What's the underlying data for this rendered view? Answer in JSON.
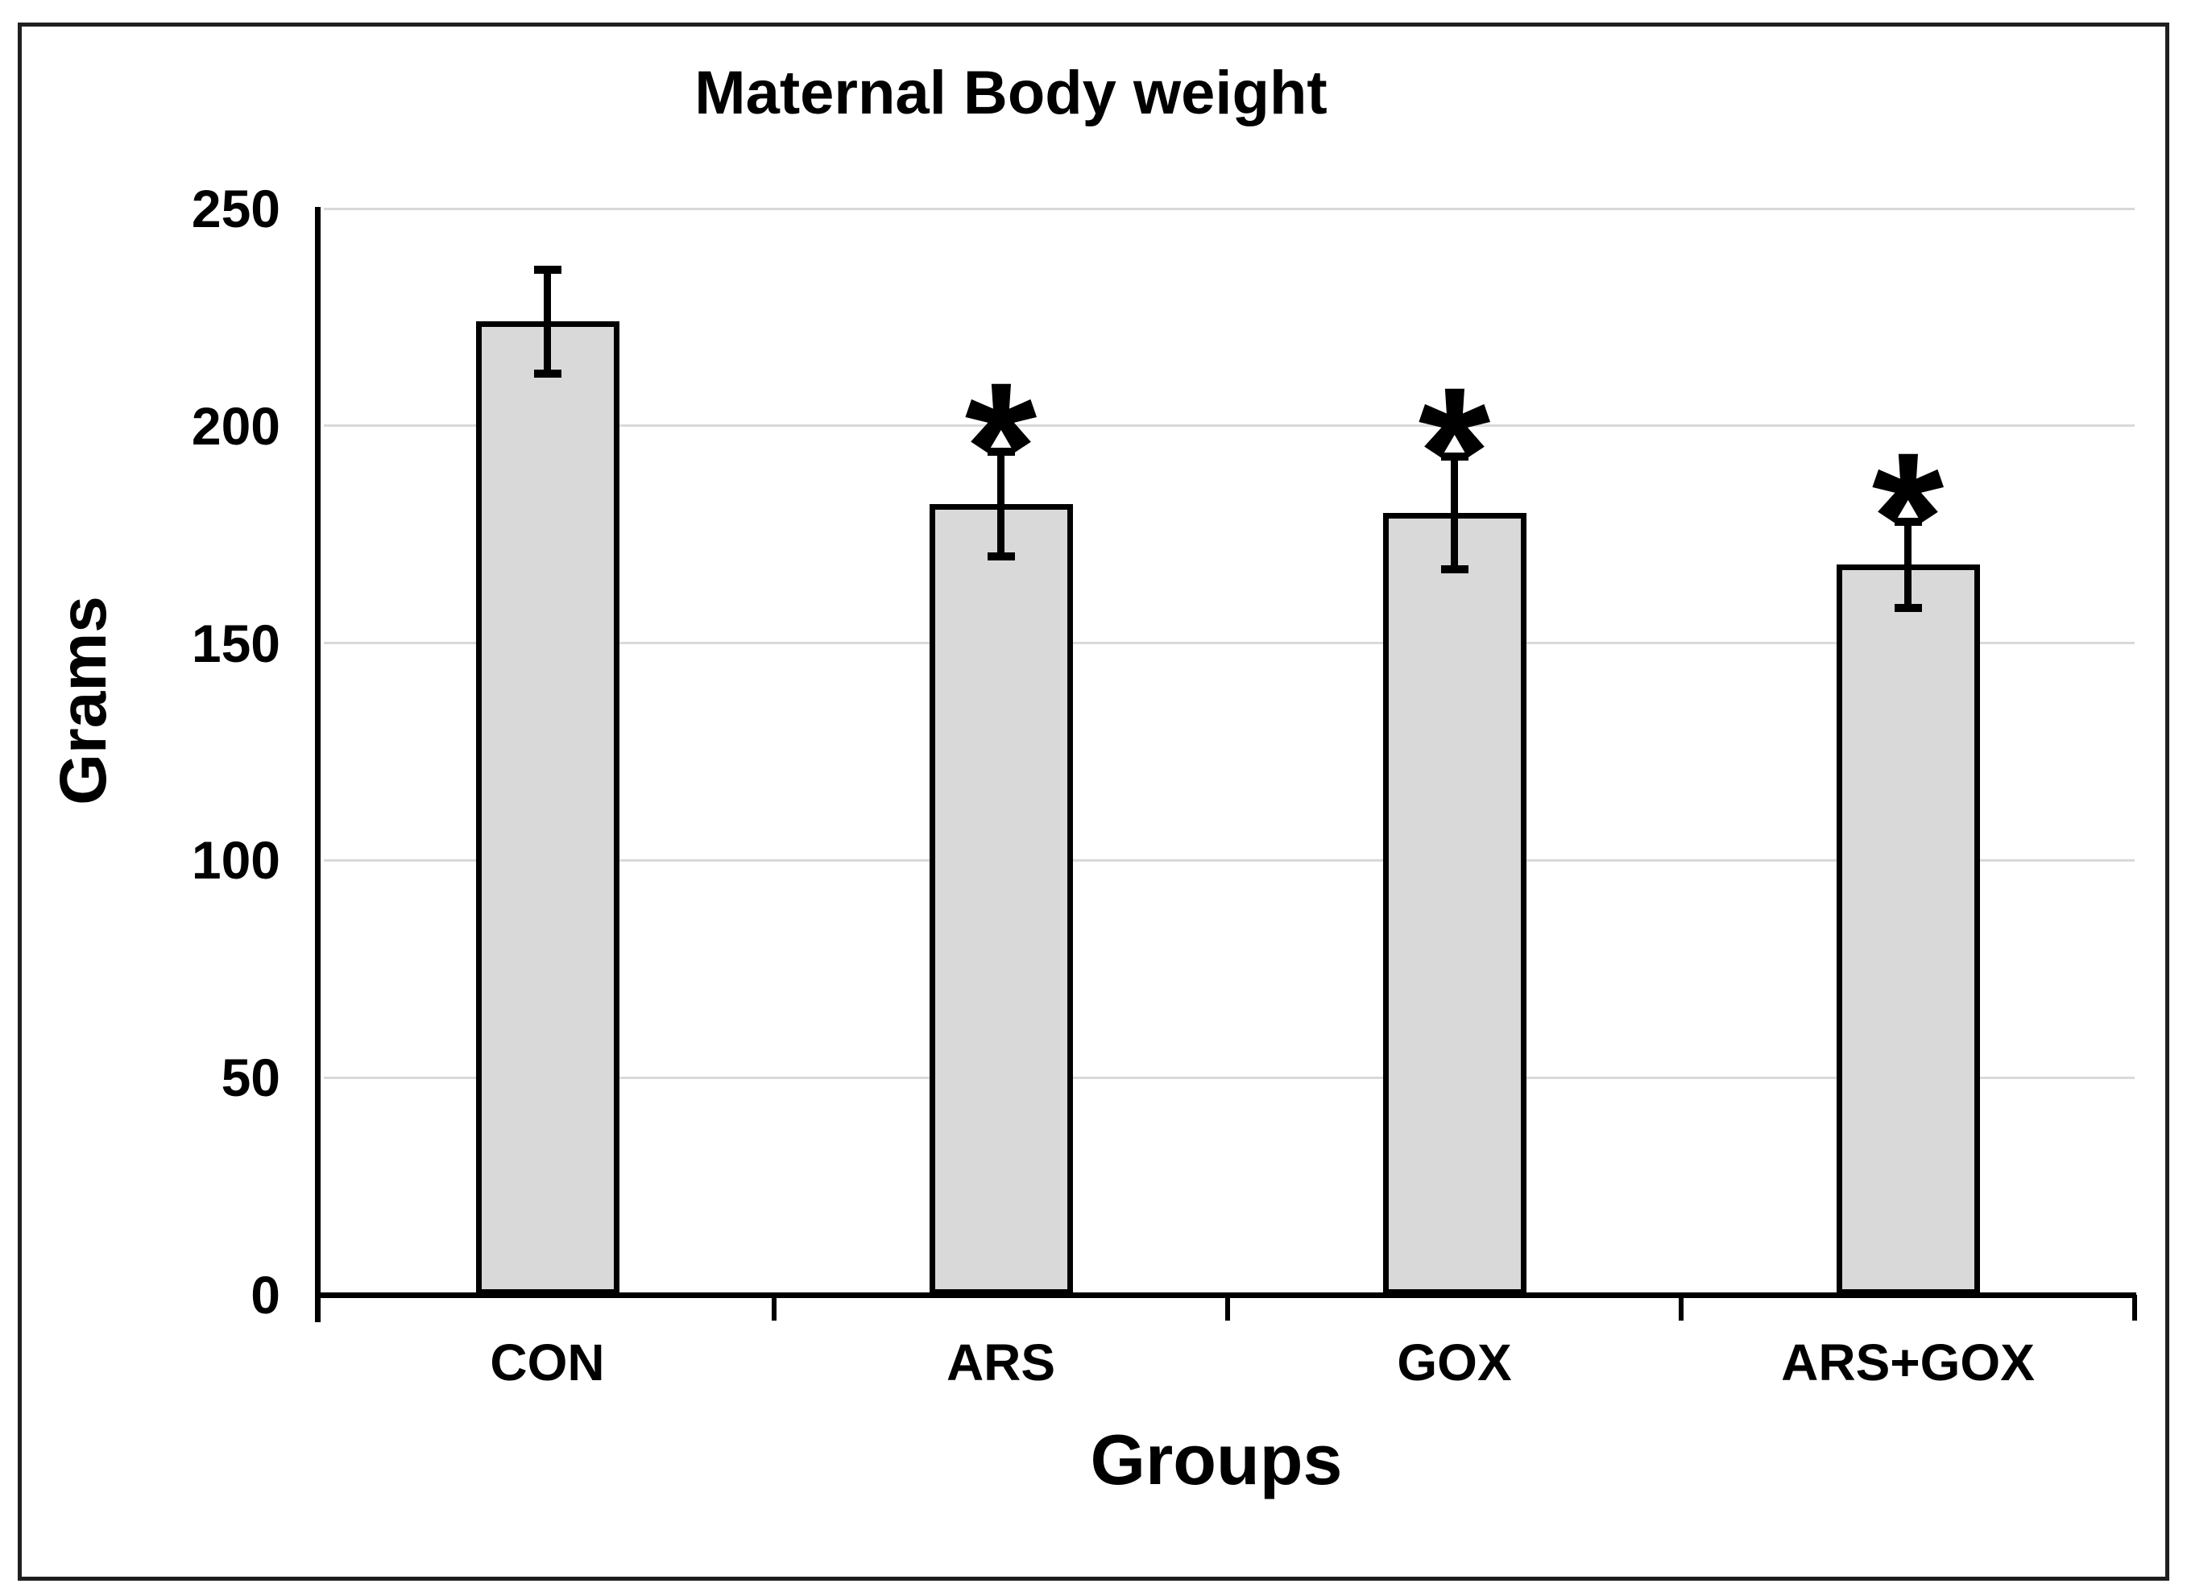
{
  "figure": {
    "background_color": "#ffffff",
    "border_color": "#1f1f1f"
  },
  "chart_data": {
    "type": "bar",
    "title": "Maternal Body weight",
    "xlabel": "Groups",
    "ylabel": "Grams",
    "categories": [
      "CON",
      "ARS",
      "GOX",
      "ARS+GOX"
    ],
    "values": [
      224,
      182,
      180,
      168
    ],
    "errors": [
      12,
      12,
      13,
      10
    ],
    "significance_markers": [
      "",
      "*",
      "*",
      "*"
    ],
    "y_ticks": [
      0,
      50,
      100,
      150,
      200,
      250
    ],
    "ylim": [
      0,
      250
    ],
    "grid": true,
    "legend": "none",
    "bar_fill_color": "#d9d9d9",
    "bar_border_color": "#000000",
    "gridline_color": "#d9d9d9",
    "axis_color": "#000000",
    "text_color": "#000000"
  }
}
